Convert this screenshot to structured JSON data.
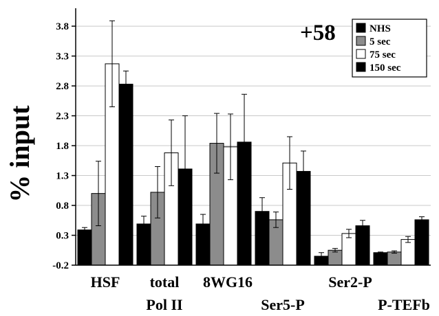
{
  "chart_data": {
    "type": "bar",
    "annotation": "+58",
    "ylabel": "% input",
    "xlabel": "",
    "ylim": [
      -0.2,
      4.1
    ],
    "yticks": [
      "3.8",
      "3.3",
      "2.8",
      "2.3",
      "1.8",
      "1.3",
      "0.8",
      "0.3",
      "-0.2"
    ],
    "grid": true,
    "legend_position": "top-right",
    "categories": [
      "HSF",
      "total Pol II",
      "8WG16",
      "Ser5-P",
      "Ser2-P",
      "P-TEFb"
    ],
    "category_labels": [
      {
        "line1": "HSF",
        "line2": ""
      },
      {
        "line1": "total",
        "line2": "Pol II"
      },
      {
        "line1": "8WG16",
        "line2": ""
      },
      {
        "line1": "",
        "line2": "Ser5-P"
      },
      {
        "line1": "Ser2-P",
        "line2": ""
      },
      {
        "line1": "",
        "line2": "P-TEFb"
      }
    ],
    "series": [
      {
        "name": "NHS",
        "color": "#000000",
        "values": [
          0.39,
          0.49,
          0.49,
          0.7,
          -0.05,
          0.01
        ],
        "errors": [
          0.04,
          0.13,
          0.16,
          0.23,
          0.06,
          0.01
        ]
      },
      {
        "name": "5 sec",
        "color": "#8c8c8c",
        "values": [
          1.0,
          1.02,
          1.84,
          0.56,
          0.05,
          0.02
        ],
        "errors": [
          0.54,
          0.43,
          0.5,
          0.13,
          0.03,
          0.02
        ]
      },
      {
        "name": "75 sec",
        "color": "#ffffff",
        "values": [
          3.17,
          1.68,
          1.78,
          1.51,
          0.33,
          0.23
        ],
        "errors": [
          0.72,
          0.55,
          0.55,
          0.44,
          0.07,
          0.05
        ]
      },
      {
        "name": "150 sec",
        "color": "#000000",
        "values": [
          2.83,
          1.41,
          1.86,
          1.37,
          0.46,
          0.56
        ],
        "errors": [
          0.22,
          0.89,
          0.8,
          0.34,
          0.09,
          0.05
        ]
      }
    ]
  }
}
